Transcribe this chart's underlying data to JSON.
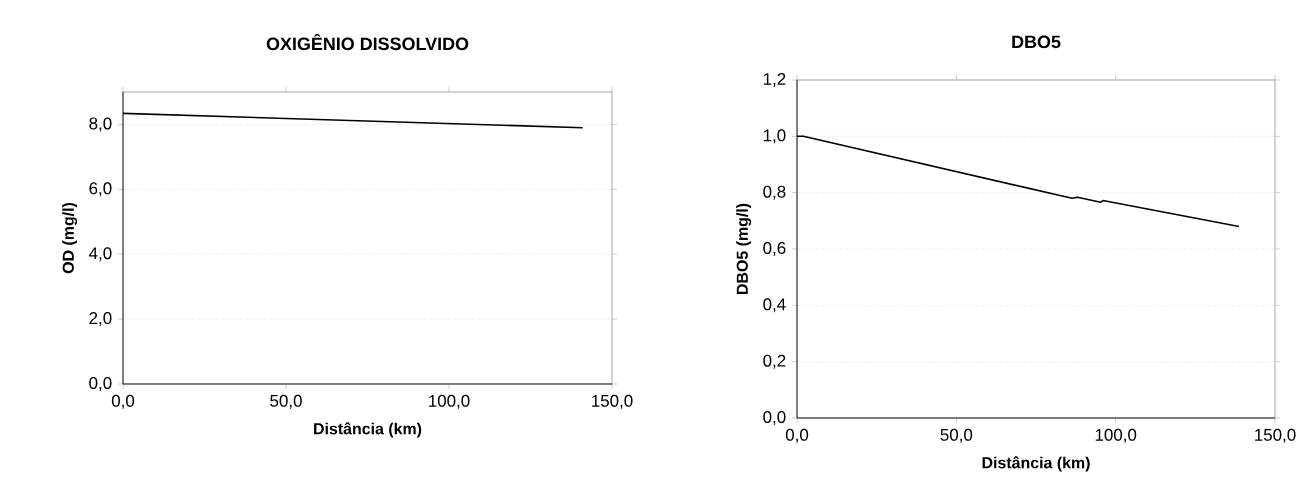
{
  "chart_data": [
    {
      "type": "line",
      "title": "OXIGÊNIO DISSOLVIDO",
      "xlabel": "Distância (km)",
      "ylabel": "OD (mg/l)",
      "x": [
        0,
        141
      ],
      "series": [
        {
          "color": "#000000",
          "values": [
            8.34,
            7.9
          ]
        }
      ],
      "xlim": [
        0,
        150
      ],
      "ylim": [
        0,
        9
      ],
      "xticks": [
        {
          "value": 0,
          "label": "0,0"
        },
        {
          "value": 50,
          "label": "50,0"
        },
        {
          "value": 100,
          "label": "100,0"
        },
        {
          "value": 150,
          "label": "150,0"
        }
      ],
      "yticks": [
        {
          "value": 0,
          "label": "0,0"
        },
        {
          "value": 2,
          "label": "2,0"
        },
        {
          "value": 4,
          "label": "4,0"
        },
        {
          "value": 6,
          "label": "6,0"
        },
        {
          "value": 8,
          "label": "8,0"
        }
      ],
      "grid": "y",
      "marker": "none"
    },
    {
      "type": "line",
      "title": "DBO5",
      "xlabel": "Distância (km)",
      "ylabel": "DBO5 (mg/l)",
      "x": [
        0,
        2,
        86.3,
        88,
        95.3,
        96,
        138.7
      ],
      "series": [
        {
          "color": "#000000",
          "values": [
            1.0,
            1.0,
            0.78,
            0.784,
            0.766,
            0.772,
            0.68
          ]
        }
      ],
      "xlim": [
        0,
        150
      ],
      "ylim": [
        0,
        1.2
      ],
      "xticks": [
        {
          "value": 0,
          "label": "0,0"
        },
        {
          "value": 50,
          "label": "50,0"
        },
        {
          "value": 100,
          "label": "100,0"
        },
        {
          "value": 150,
          "label": "150,0"
        }
      ],
      "yticks": [
        {
          "value": 0,
          "label": "0,0"
        },
        {
          "value": 0.2,
          "label": "0,2"
        },
        {
          "value": 0.4,
          "label": "0,4"
        },
        {
          "value": 0.6,
          "label": "0,6"
        },
        {
          "value": 0.8,
          "label": "0,8"
        },
        {
          "value": 1.0,
          "label": "1,0"
        },
        {
          "value": 1.2,
          "label": "1,2"
        }
      ],
      "grid": "y",
      "marker": "none"
    }
  ]
}
